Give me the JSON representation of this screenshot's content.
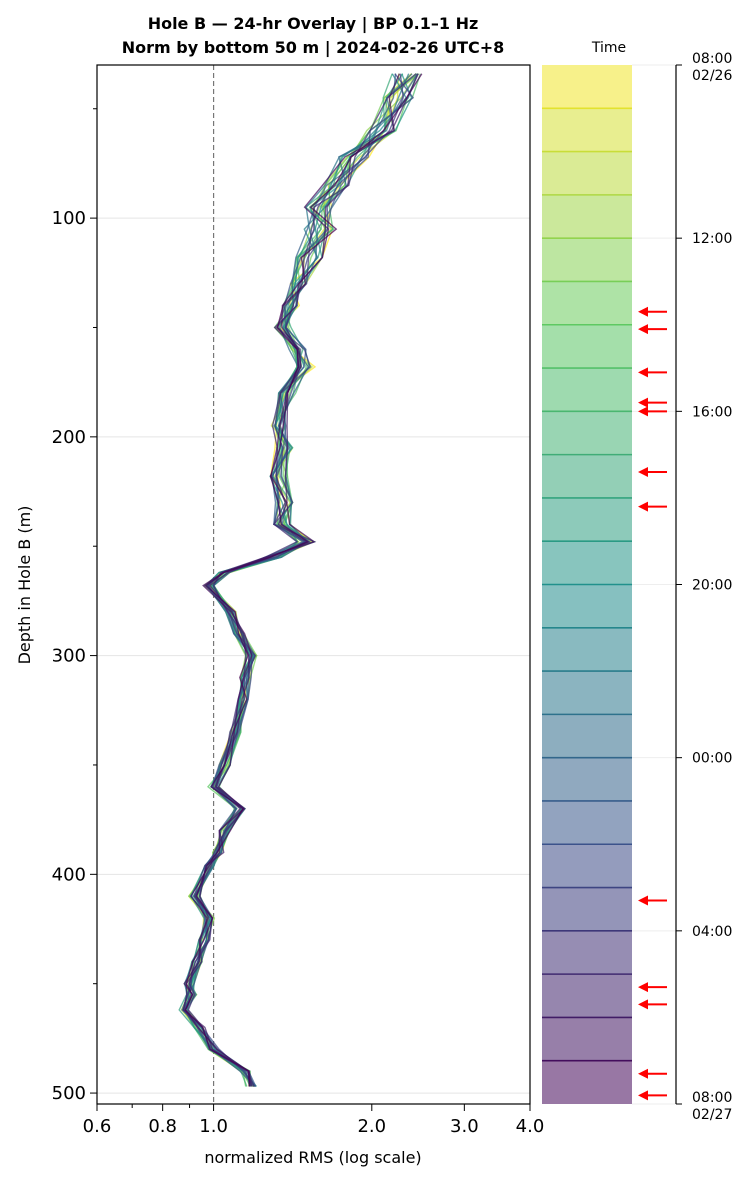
{
  "chart_data": {
    "type": "line",
    "title_line1": "Hole B — 24-hr Overlay  |  BP 0.1–1 Hz",
    "title_line2": "Norm by bottom 50 m  |  2024-02-26 UTC+8",
    "xlabel": "normalized RMS  (log scale)",
    "ylabel": "Depth in Hole B (m)",
    "x_scale": "log",
    "xlim": [
      0.6,
      4.0
    ],
    "ylim": [
      505,
      30
    ],
    "x_ticks": [
      0.6,
      0.8,
      1.0,
      2.0,
      3.0,
      4.0
    ],
    "x_tick_labels": [
      "0.6",
      "0.8",
      "1.0",
      "2.0",
      "3.0",
      "4.0"
    ],
    "y_ticks": [
      100,
      200,
      300,
      400,
      500
    ],
    "y_tick_labels": [
      "100",
      "200",
      "300",
      "400",
      "500"
    ],
    "reference_line_x": 1.0,
    "grid": "horizontal",
    "series_count": 24,
    "base_profile": [
      [
        34,
        2.35
      ],
      [
        45,
        2.25
      ],
      [
        60,
        2.1
      ],
      [
        72,
        1.85
      ],
      [
        85,
        1.7
      ],
      [
        95,
        1.6
      ],
      [
        105,
        1.6
      ],
      [
        118,
        1.52
      ],
      [
        130,
        1.45
      ],
      [
        140,
        1.4
      ],
      [
        150,
        1.35
      ],
      [
        160,
        1.45
      ],
      [
        168,
        1.5
      ],
      [
        180,
        1.38
      ],
      [
        195,
        1.33
      ],
      [
        205,
        1.36
      ],
      [
        218,
        1.33
      ],
      [
        230,
        1.36
      ],
      [
        240,
        1.35
      ],
      [
        248,
        1.5
      ],
      [
        255,
        1.3
      ],
      [
        262,
        1.05
      ],
      [
        268,
        0.98
      ],
      [
        280,
        1.08
      ],
      [
        290,
        1.12
      ],
      [
        300,
        1.18
      ],
      [
        310,
        1.15
      ],
      [
        320,
        1.14
      ],
      [
        335,
        1.1
      ],
      [
        350,
        1.05
      ],
      [
        360,
        1.0
      ],
      [
        370,
        1.12
      ],
      [
        380,
        1.05
      ],
      [
        390,
        1.02
      ],
      [
        396,
        0.98
      ],
      [
        410,
        0.92
      ],
      [
        420,
        0.98
      ],
      [
        430,
        0.96
      ],
      [
        440,
        0.93
      ],
      [
        450,
        0.9
      ],
      [
        455,
        0.91
      ],
      [
        462,
        0.88
      ],
      [
        470,
        0.94
      ],
      [
        480,
        1.0
      ],
      [
        490,
        1.15
      ],
      [
        497,
        1.18
      ]
    ],
    "colorbar": {
      "label": "Time",
      "tick_labels": [
        "08:00\n02/26",
        "12:00",
        "16:00",
        "20:00",
        "00:00",
        "04:00",
        "08:00\n02/27"
      ],
      "tick_hours": [
        0,
        4,
        8,
        12,
        16,
        20,
        24
      ],
      "segments": 24,
      "colormap": "viridis_r",
      "marked_hours": [
        5.7,
        6.1,
        7.1,
        7.8,
        8.0,
        9.4,
        10.2,
        19.3,
        21.3,
        21.7,
        23.3,
        23.8
      ]
    }
  }
}
